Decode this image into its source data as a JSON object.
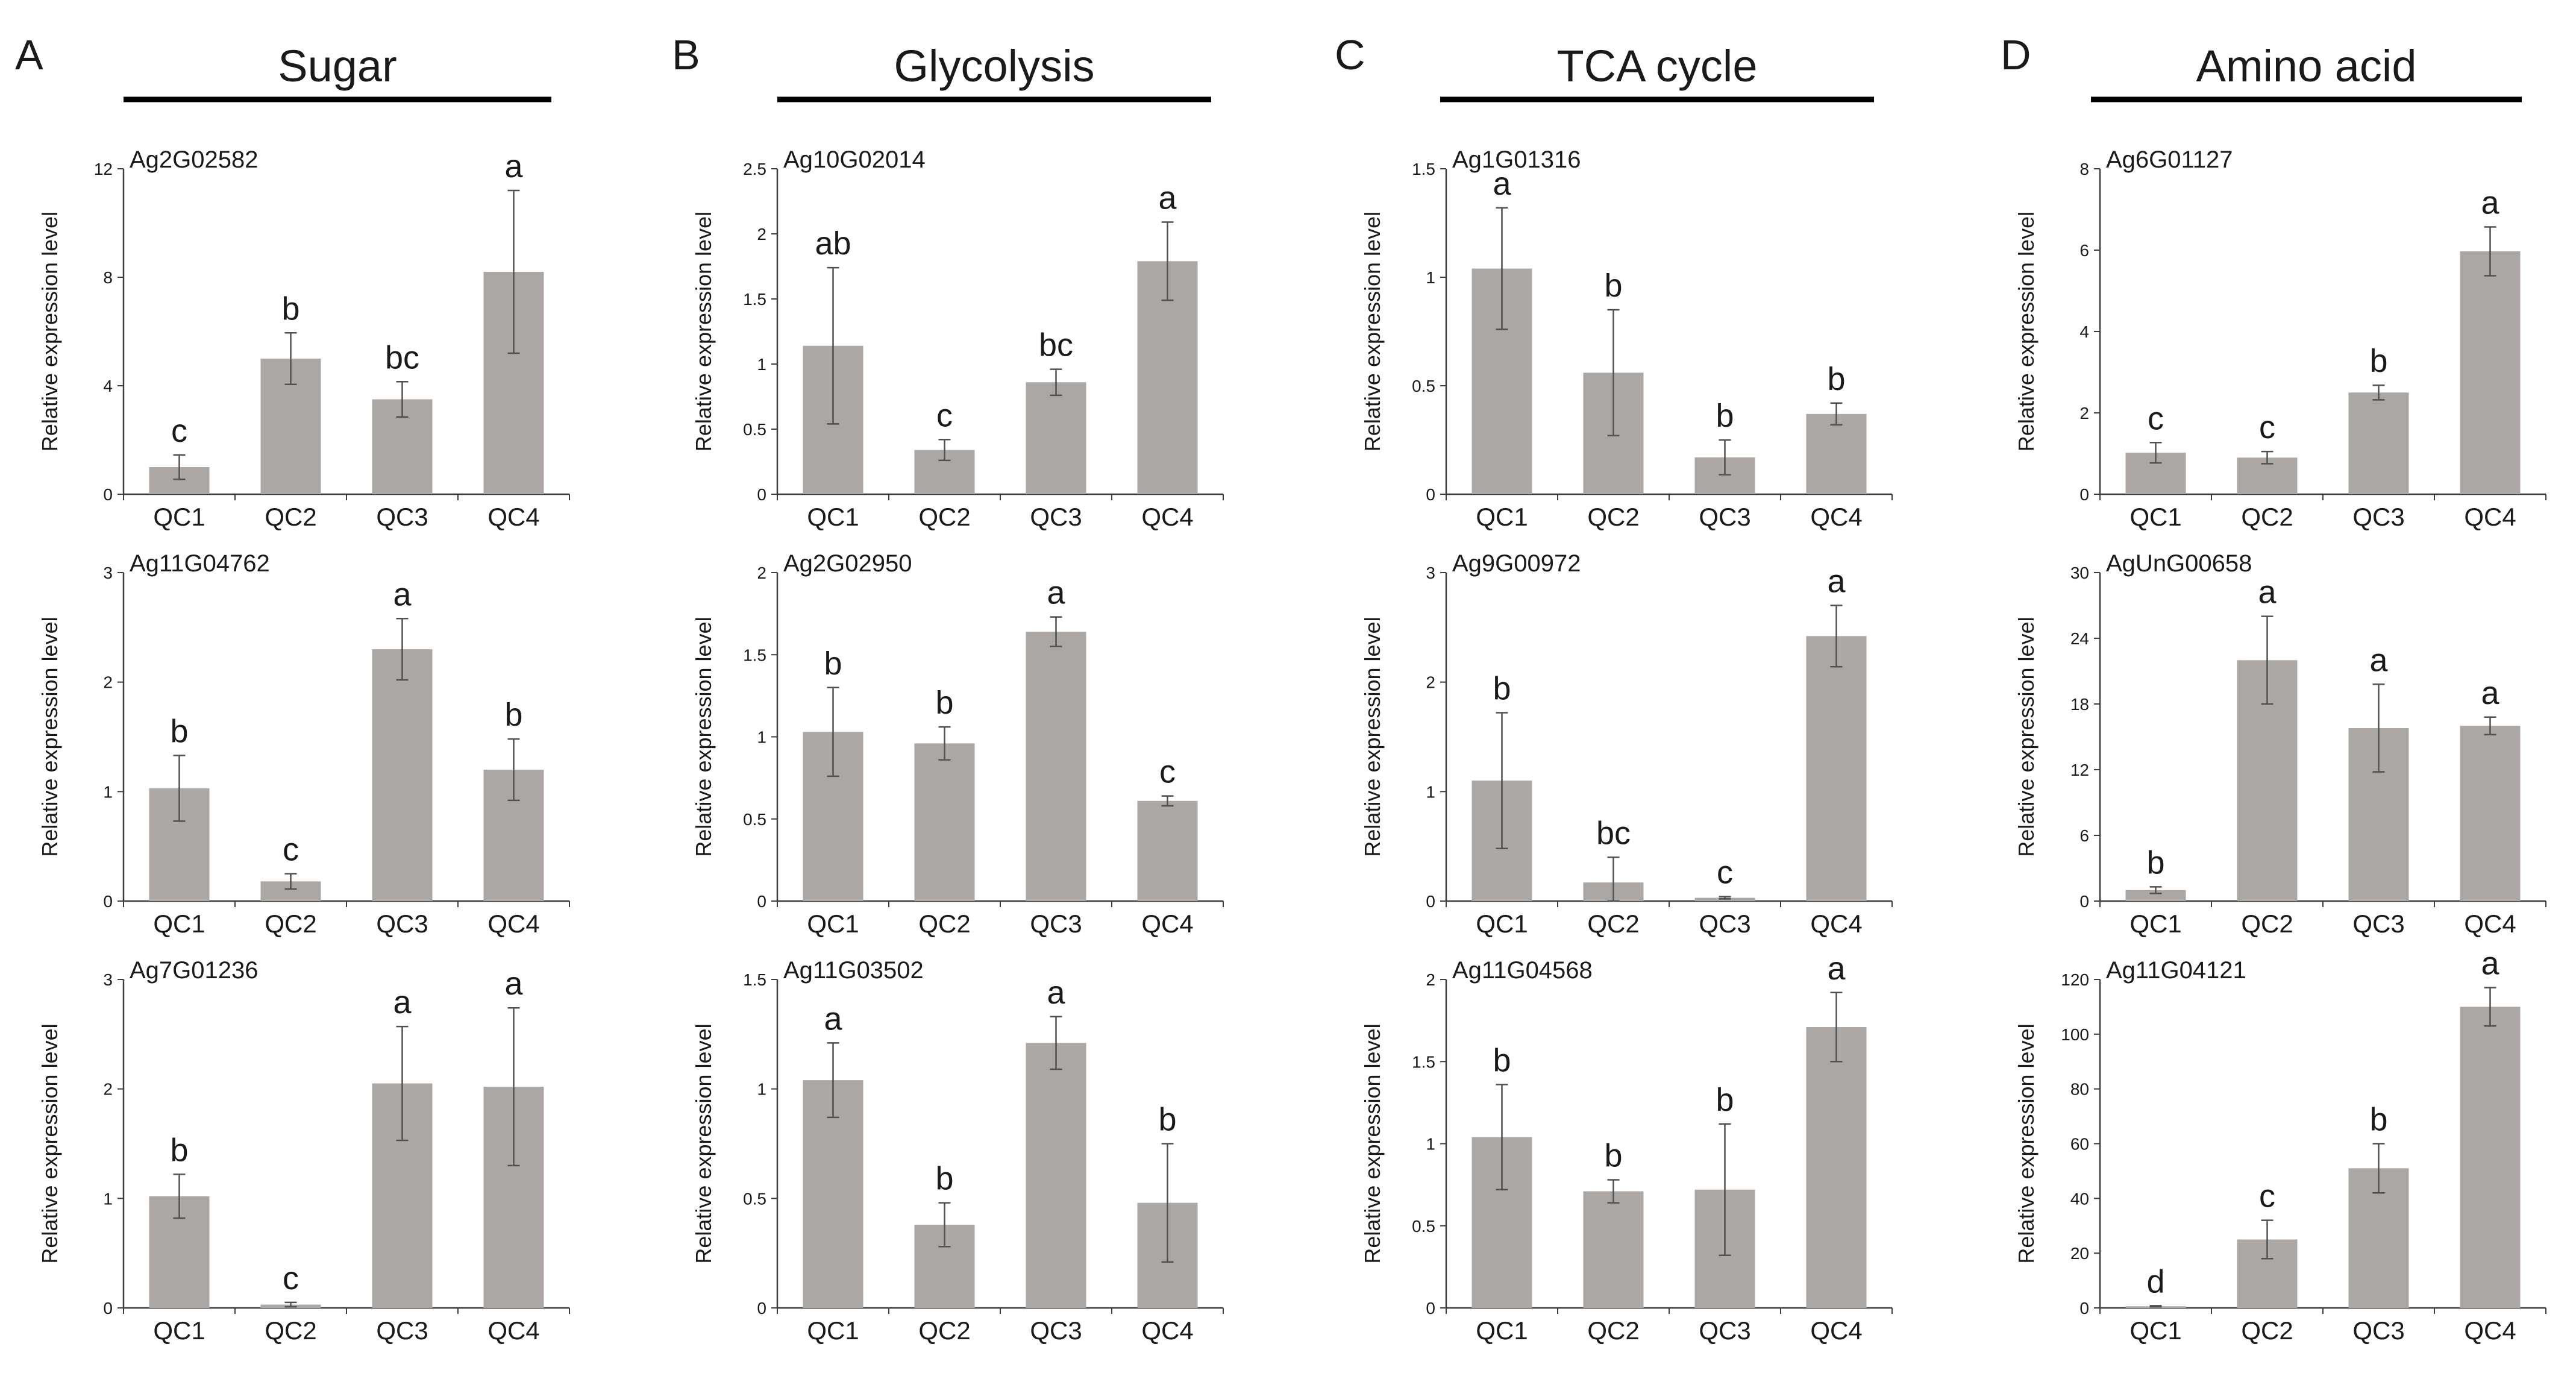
{
  "panels": [
    {
      "letter": "A",
      "title": "Sugar",
      "charts": [
        {
          "type": "bar",
          "gene": "Ag2G02582",
          "ylabel": "Relative expression level",
          "categories": [
            "QC1",
            "QC2",
            "QC3",
            "QC4"
          ],
          "values": [
            1.0,
            5.0,
            3.5,
            8.2
          ],
          "errors": [
            0.45,
            0.95,
            0.65,
            3.0
          ],
          "significance": [
            "c",
            "b",
            "bc",
            "a"
          ],
          "ylim": [
            0,
            12
          ],
          "yticks": [
            0,
            4,
            8,
            12
          ],
          "ytick_labels": [
            "0",
            "4",
            "8",
            "12"
          ]
        },
        {
          "type": "bar",
          "gene": "Ag11G04762",
          "ylabel": "Relative expression level",
          "categories": [
            "QC1",
            "QC2",
            "QC3",
            "QC4"
          ],
          "values": [
            1.03,
            0.18,
            2.3,
            1.2
          ],
          "errors": [
            0.3,
            0.07,
            0.28,
            0.28
          ],
          "significance": [
            "b",
            "c",
            "a",
            "b"
          ],
          "ylim": [
            0,
            3
          ],
          "yticks": [
            0,
            1,
            2,
            3
          ],
          "ytick_labels": [
            "0",
            "1",
            "2",
            "3"
          ]
        },
        {
          "type": "bar",
          "gene": "Ag7G01236",
          "ylabel": "Relative expression level",
          "categories": [
            "QC1",
            "QC2",
            "QC3",
            "QC4"
          ],
          "values": [
            1.02,
            0.03,
            2.05,
            2.02
          ],
          "errors": [
            0.2,
            0.02,
            0.52,
            0.72
          ],
          "significance": [
            "b",
            "c",
            "a",
            "a"
          ],
          "ylim": [
            0,
            3
          ],
          "yticks": [
            0,
            1,
            2,
            3
          ],
          "ytick_labels": [
            "0",
            "1",
            "2",
            "3"
          ]
        }
      ]
    },
    {
      "letter": "B",
      "title": "Glycolysis",
      "charts": [
        {
          "type": "bar",
          "gene": "Ag10G02014",
          "ylabel": "Relative expression level",
          "categories": [
            "QC1",
            "QC2",
            "QC3",
            "QC4"
          ],
          "values": [
            1.14,
            0.34,
            0.86,
            1.79
          ],
          "errors": [
            0.6,
            0.08,
            0.1,
            0.3
          ],
          "significance": [
            "ab",
            "c",
            "bc",
            "a"
          ],
          "ylim": [
            0,
            2.5
          ],
          "yticks": [
            0,
            0.5,
            1,
            1.5,
            2,
            2.5
          ],
          "ytick_labels": [
            "0",
            "0.5",
            "1",
            "1.5",
            "2",
            "2.5"
          ]
        },
        {
          "type": "bar",
          "gene": "Ag2G02950",
          "ylabel": "Relative expression level",
          "categories": [
            "QC1",
            "QC2",
            "QC3",
            "QC4"
          ],
          "values": [
            1.03,
            0.96,
            1.64,
            0.61
          ],
          "errors": [
            0.27,
            0.1,
            0.09,
            0.03
          ],
          "significance": [
            "b",
            "b",
            "a",
            "c"
          ],
          "ylim": [
            0,
            2
          ],
          "yticks": [
            0,
            0.5,
            1,
            1.5,
            2
          ],
          "ytick_labels": [
            "0",
            "0.5",
            "1",
            "1.5",
            "2"
          ]
        },
        {
          "type": "bar",
          "gene": "Ag11G03502",
          "ylabel": "Relative expression level",
          "categories": [
            "QC1",
            "QC2",
            "QC3",
            "QC4"
          ],
          "values": [
            1.04,
            0.38,
            1.21,
            0.48
          ],
          "errors": [
            0.17,
            0.1,
            0.12,
            0.27
          ],
          "significance": [
            "a",
            "b",
            "a",
            "b"
          ],
          "ylim": [
            0,
            1.5
          ],
          "yticks": [
            0,
            0.5,
            1,
            1.5
          ],
          "ytick_labels": [
            "0",
            "0.5",
            "1",
            "1.5"
          ]
        }
      ]
    },
    {
      "letter": "C",
      "title": "TCA cycle",
      "charts": [
        {
          "type": "bar",
          "gene": "Ag1G01316",
          "ylabel": "Relative expression level",
          "categories": [
            "QC1",
            "QC2",
            "QC3",
            "QC4"
          ],
          "values": [
            1.04,
            0.56,
            0.17,
            0.37
          ],
          "errors": [
            0.28,
            0.29,
            0.08,
            0.05
          ],
          "significance": [
            "a",
            "b",
            "b",
            "b"
          ],
          "ylim": [
            0,
            1.5
          ],
          "yticks": [
            0,
            0.5,
            1,
            1.5
          ],
          "ytick_labels": [
            "0",
            "0.5",
            "1",
            "1.5"
          ]
        },
        {
          "type": "bar",
          "gene": "Ag9G00972",
          "ylabel": "Relative expression level",
          "categories": [
            "QC1",
            "QC2",
            "QC3",
            "QC4"
          ],
          "values": [
            1.1,
            0.17,
            0.03,
            2.42
          ],
          "errors": [
            0.62,
            0.23,
            0.01,
            0.28
          ],
          "significance": [
            "b",
            "bc",
            "c",
            "a"
          ],
          "ylim": [
            0,
            3
          ],
          "yticks": [
            0,
            1,
            2,
            3
          ],
          "ytick_labels": [
            "0",
            "1",
            "2",
            "3"
          ]
        },
        {
          "type": "bar",
          "gene": "Ag11G04568",
          "ylabel": "Relative expression level",
          "categories": [
            "QC1",
            "QC2",
            "QC3",
            "QC4"
          ],
          "values": [
            1.04,
            0.71,
            0.72,
            1.71
          ],
          "errors": [
            0.32,
            0.07,
            0.4,
            0.21
          ],
          "significance": [
            "b",
            "b",
            "b",
            "a"
          ],
          "ylim": [
            0,
            2
          ],
          "yticks": [
            0,
            0.5,
            1,
            1.5,
            2
          ],
          "ytick_labels": [
            "0",
            "0.5",
            "1",
            "1.5",
            "2"
          ]
        }
      ]
    },
    {
      "letter": "D",
      "title": "Amino acid",
      "charts": [
        {
          "type": "bar",
          "gene": "Ag6G01127",
          "ylabel": "Relative expression level",
          "categories": [
            "QC1",
            "QC2",
            "QC3",
            "QC4"
          ],
          "values": [
            1.02,
            0.9,
            2.5,
            5.97
          ],
          "errors": [
            0.25,
            0.15,
            0.18,
            0.6
          ],
          "significance": [
            "c",
            "c",
            "b",
            "a"
          ],
          "ylim": [
            0,
            8
          ],
          "yticks": [
            0,
            2,
            4,
            6,
            8
          ],
          "ytick_labels": [
            "0",
            "2",
            "4",
            "6",
            "8"
          ]
        },
        {
          "type": "bar",
          "gene": "AgUnG00658",
          "ylabel": "Relative expression level",
          "categories": [
            "QC1",
            "QC2",
            "QC3",
            "QC4"
          ],
          "values": [
            1.0,
            22.0,
            15.8,
            16.0
          ],
          "errors": [
            0.3,
            4.0,
            4.0,
            0.8
          ],
          "significance": [
            "b",
            "a",
            "a",
            "a"
          ],
          "ylim": [
            0,
            30
          ],
          "yticks": [
            0,
            6,
            12,
            18,
            24,
            30
          ],
          "ytick_labels": [
            "0",
            "6",
            "12",
            "18",
            "24",
            "30"
          ]
        },
        {
          "type": "bar",
          "gene": "Ag11G04121",
          "ylabel": "Relative expression level",
          "categories": [
            "QC1",
            "QC2",
            "QC3",
            "QC4"
          ],
          "values": [
            0.6,
            25.0,
            51.0,
            110.0
          ],
          "errors": [
            0.2,
            7.0,
            9.0,
            7.0
          ],
          "significance": [
            "d",
            "c",
            "b",
            "a"
          ],
          "ylim": [
            0,
            120
          ],
          "yticks": [
            0,
            20,
            40,
            60,
            80,
            100,
            120
          ],
          "ytick_labels": [
            "0",
            "20",
            "40",
            "60",
            "80",
            "100",
            "120"
          ]
        }
      ]
    }
  ]
}
